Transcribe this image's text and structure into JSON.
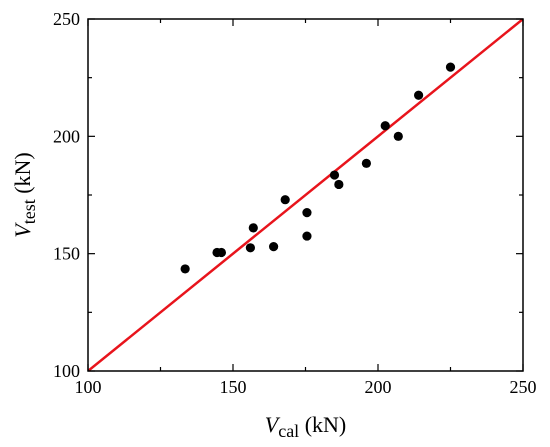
{
  "chart_data": {
    "type": "scatter",
    "xlabel": {
      "var": "V",
      "sub": "cal",
      "unit": " (kN)"
    },
    "ylabel": {
      "var": "V",
      "sub": "test",
      "unit": " (kN)"
    },
    "xlim": [
      100,
      250
    ],
    "ylim": [
      100,
      250
    ],
    "xticks": [
      100,
      150,
      200,
      250
    ],
    "yticks": [
      100,
      150,
      200,
      250
    ],
    "grid": false,
    "points": [
      {
        "x": 133.5,
        "y": 143.5
      },
      {
        "x": 144.5,
        "y": 150.5
      },
      {
        "x": 146.0,
        "y": 150.5
      },
      {
        "x": 156.0,
        "y": 152.5
      },
      {
        "x": 157.0,
        "y": 161.0
      },
      {
        "x": 164.0,
        "y": 153.0
      },
      {
        "x": 168.0,
        "y": 173.0
      },
      {
        "x": 175.5,
        "y": 167.5
      },
      {
        "x": 175.5,
        "y": 157.5
      },
      {
        "x": 185.0,
        "y": 183.5
      },
      {
        "x": 186.5,
        "y": 179.5
      },
      {
        "x": 196.0,
        "y": 188.5
      },
      {
        "x": 202.5,
        "y": 204.5
      },
      {
        "x": 207.0,
        "y": 200.0
      },
      {
        "x": 214.0,
        "y": 217.5
      },
      {
        "x": 225.0,
        "y": 229.5
      }
    ],
    "reference_line": {
      "from": [
        100,
        100
      ],
      "to": [
        250,
        250
      ],
      "color": "#e8141c"
    },
    "marker_color": "#000000"
  }
}
